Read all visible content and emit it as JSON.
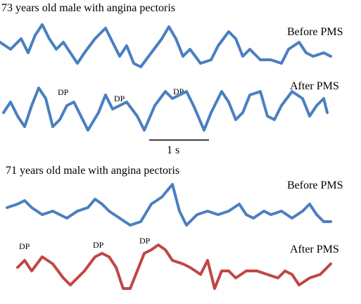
{
  "panels": [
    {
      "title": "73 years old male with angina pectoris",
      "before_label": "Before PMS",
      "after_label": "After PMS",
      "dp_labels": [
        "DP",
        "DP",
        "DP"
      ],
      "scale_label": "1 s"
    },
    {
      "title": "71 years old male with angina pectoris",
      "before_label": "Before PMS",
      "after_label": "After PMS",
      "dp_labels": [
        "DP",
        "DP",
        "DP"
      ]
    }
  ]
}
